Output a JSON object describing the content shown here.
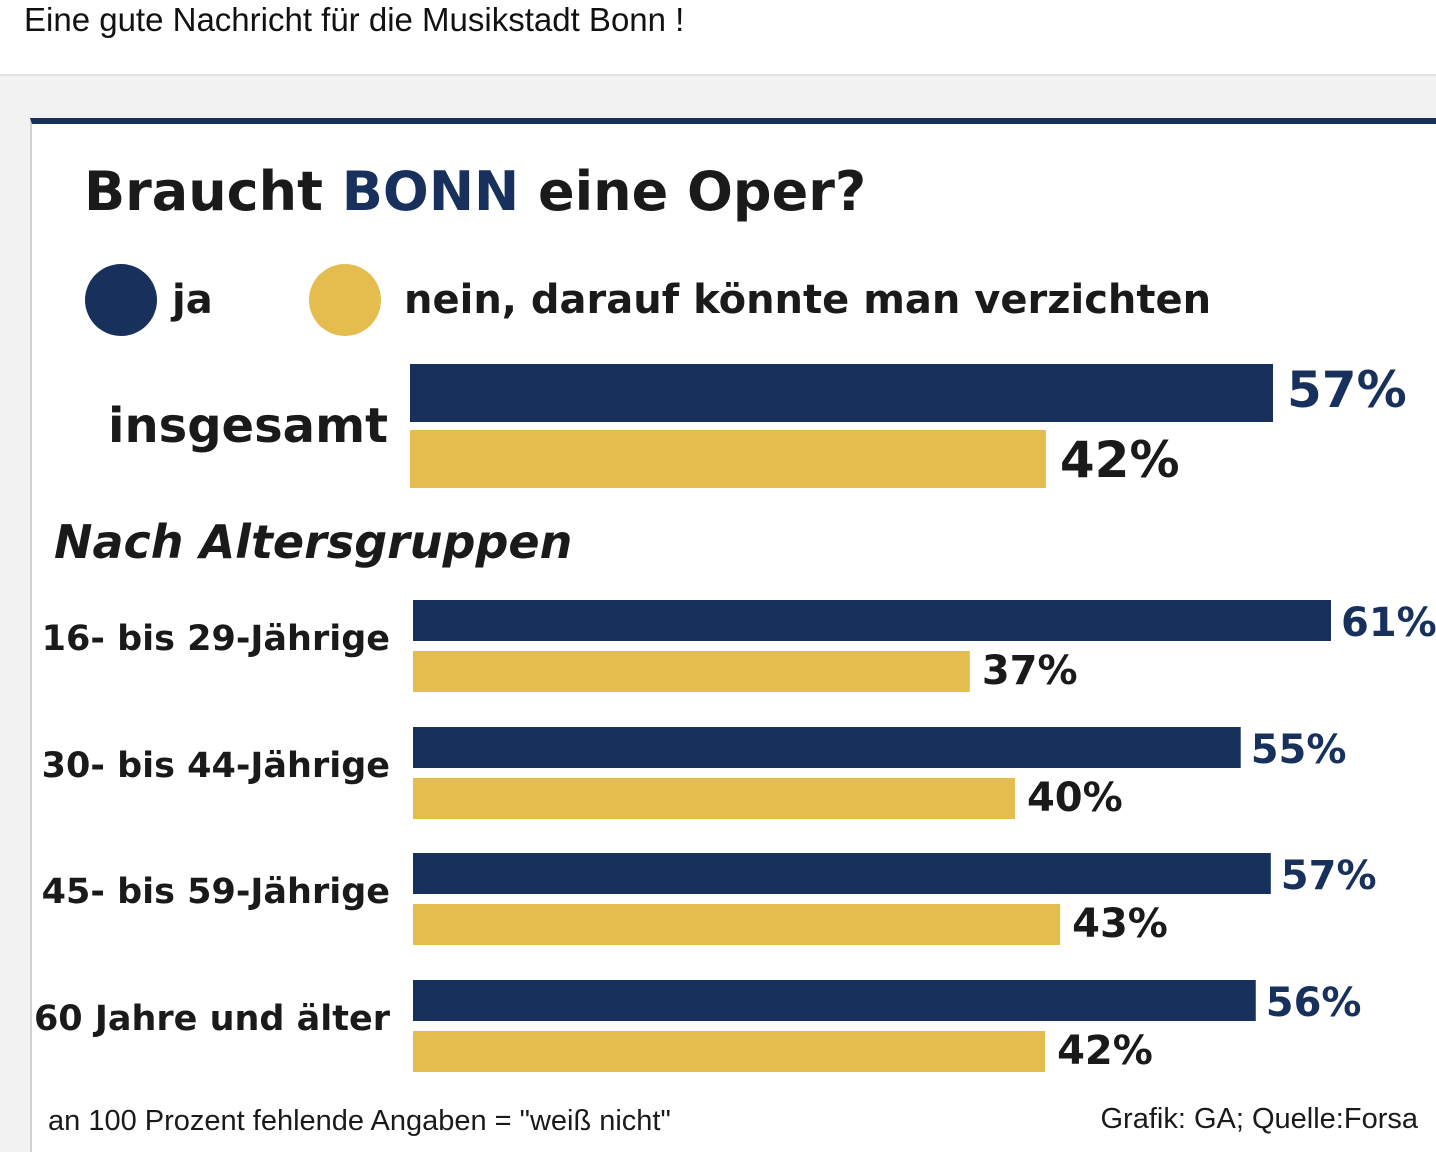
{
  "post": {
    "text": "Eine gute Nachricht für die Musikstadt Bonn !"
  },
  "colors": {
    "ja": "#17305c",
    "nein": "#e5bd4f",
    "ja_text": "#17305c",
    "nein_text": "#1a1a1a"
  },
  "chart_data": {
    "type": "bar",
    "orientation": "horizontal",
    "title": {
      "prefix": "Braucht ",
      "accent": "BONN",
      "suffix": " eine Oper?"
    },
    "legend": {
      "placement": "top-left",
      "items": [
        {
          "key": "ja",
          "label": "ja"
        },
        {
          "key": "nein",
          "label": "nein, darauf könnte man verzichten"
        }
      ]
    },
    "overall": {
      "label": "insgesamt",
      "ja": 57,
      "nein": 42,
      "ja_label": "57%",
      "nein_label": "42%"
    },
    "section_label": "Nach Altersgruppen",
    "categories": [
      "16- bis 29-Jährige",
      "30- bis 44-Jährige",
      "45- bis 59-Jährige",
      "60 Jahre und älter"
    ],
    "series": [
      {
        "name": "ja",
        "values": [
          61,
          55,
          57,
          56
        ],
        "labels": [
          "61%",
          "55%",
          "57%",
          "56%"
        ]
      },
      {
        "name": "nein",
        "values": [
          37,
          40,
          43,
          42
        ],
        "labels": [
          "37%",
          "40%",
          "43%",
          "42%"
        ]
      }
    ],
    "unit": "%",
    "grid": false,
    "footnote": "an 100 Prozent fehlende Angaben = \"weiß nicht\"",
    "source": "Grafik: GA; Quelle:Forsa"
  }
}
